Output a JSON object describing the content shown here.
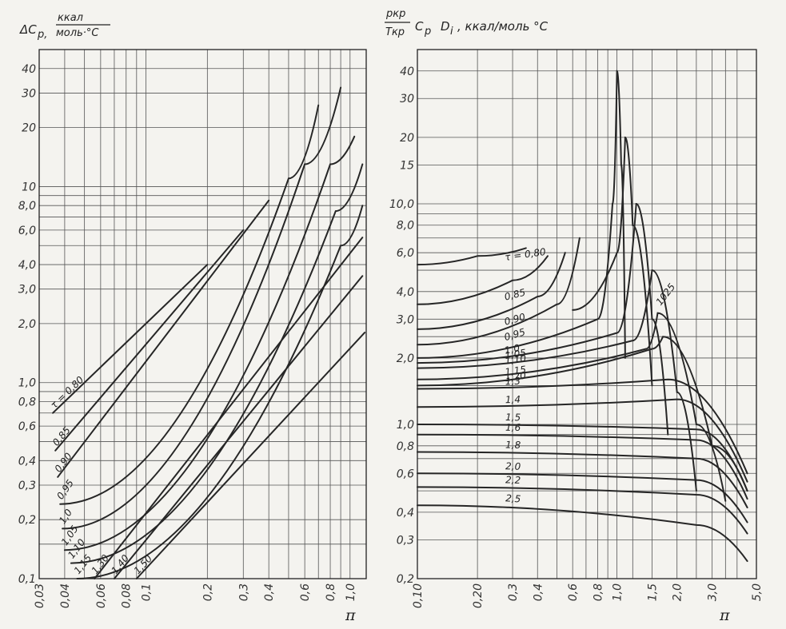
{
  "chart_data": [
    {
      "type": "line",
      "title": "ΔC_p, ккал/моль·°C",
      "title_parts": {
        "symbol": "ΔC",
        "sub": "p",
        "units_num": "ккал",
        "units_den": "моль·°C"
      },
      "xlabel": "π",
      "xscale": "log",
      "yscale": "log",
      "xlim": [
        0.03,
        1.2
      ],
      "ylim": [
        0.1,
        50
      ],
      "x_ticks": [
        "0,03",
        "0,04",
        "0,06",
        "0,08",
        "0,1",
        "0,2",
        "0,3",
        "0,4",
        "0,6",
        "0,8",
        "1,0"
      ],
      "y_ticks": [
        "0,1",
        "0,2",
        "0,3",
        "0,4",
        "0,6",
        "0,8",
        "1,0",
        "2,0",
        "3,0",
        "4,0",
        "6,0",
        "8,0",
        "10",
        "20",
        "30",
        "40"
      ],
      "series": [
        {
          "name": "τ = 0,80",
          "x": [
            0.035,
            0.2
          ],
          "y": [
            0.7,
            4.0
          ]
        },
        {
          "name": "0,85",
          "x": [
            0.036,
            0.3
          ],
          "y": [
            0.45,
            6.0
          ]
        },
        {
          "name": "0,90",
          "x": [
            0.037,
            0.4
          ],
          "y": [
            0.33,
            8.5
          ]
        },
        {
          "name": "0,95",
          "x": [
            0.038,
            0.5,
            0.7
          ],
          "y": [
            0.24,
            11,
            26
          ]
        },
        {
          "name": "1,0",
          "x": [
            0.039,
            0.6,
            0.9
          ],
          "y": [
            0.18,
            13,
            32
          ]
        },
        {
          "name": "1,05",
          "x": [
            0.04,
            0.8,
            1.05
          ],
          "y": [
            0.14,
            13,
            18
          ]
        },
        {
          "name": "1,10",
          "x": [
            0.043,
            0.85,
            1.15
          ],
          "y": [
            0.12,
            7.5,
            13
          ]
        },
        {
          "name": "1,15",
          "x": [
            0.046,
            0.9,
            1.15
          ],
          "y": [
            0.1,
            5.0,
            8.0
          ]
        },
        {
          "name": "1,30",
          "x": [
            0.056,
            1.15
          ],
          "y": [
            0.1,
            5.5
          ]
        },
        {
          "name": "1,40",
          "x": [
            0.07,
            1.15
          ],
          "y": [
            0.1,
            3.5
          ]
        },
        {
          "name": "1,50",
          "x": [
            0.09,
            1.18
          ],
          "y": [
            0.1,
            1.8
          ]
        }
      ]
    },
    {
      "type": "line",
      "title": "p_кр/T_кр · C_p D_i, ккал/моль °C",
      "title_parts": {
        "frac_num": "p",
        "frac_num_sub": "кр",
        "frac_den": "T",
        "frac_den_sub": "кр",
        "symbol1": "C",
        "sub1": "p",
        "symbol2": "D",
        "sub2": "i",
        "units": ", ккал/моль °C"
      },
      "xlabel": "π",
      "xscale": "log",
      "yscale": "log",
      "xlim": [
        0.1,
        5.0
      ],
      "ylim": [
        0.2,
        50
      ],
      "x_ticks": [
        "0,10",
        "0,20",
        "0,3",
        "0,4",
        "0,6",
        "0,8",
        "1,0",
        "1,5",
        "2,0",
        "3,0",
        "5,0"
      ],
      "y_ticks": [
        "0,2",
        "0,3",
        "0,4",
        "0,6",
        "0,8",
        "1,0",
        "2,0",
        "3,0",
        "4,0",
        "6,0",
        "8,0",
        "10,0",
        "15",
        "20",
        "30",
        "40"
      ],
      "series": [
        {
          "name": "τ = 0,80",
          "x": [
            0.1,
            0.2,
            0.35
          ],
          "y": [
            5.3,
            5.8,
            6.3
          ]
        },
        {
          "name": "0,85",
          "x": [
            0.1,
            0.3,
            0.45
          ],
          "y": [
            3.5,
            4.5,
            5.8
          ]
        },
        {
          "name": "0,90",
          "x": [
            0.1,
            0.4,
            0.55
          ],
          "y": [
            2.7,
            3.8,
            6.0
          ]
        },
        {
          "name": "0,95",
          "x": [
            0.1,
            0.5,
            0.65
          ],
          "y": [
            2.3,
            3.5,
            7.0
          ]
        },
        {
          "name": "1,0",
          "x": [
            0.1,
            0.8,
            0.95,
            1.0,
            1.05,
            1.1
          ],
          "y": [
            2.0,
            3.0,
            10,
            40,
            15,
            2.0
          ]
        },
        {
          "name": "1025",
          "x": [
            0.6,
            1.0,
            1.1,
            1.2,
            1.5
          ],
          "y": [
            3.3,
            6.0,
            20,
            8,
            1.5
          ]
        },
        {
          "name": "1,05",
          "x": [
            0.1,
            1.0,
            1.25,
            1.5,
            1.8
          ],
          "y": [
            1.9,
            2.6,
            10,
            3.0,
            0.9
          ]
        },
        {
          "name": "1,10",
          "x": [
            0.1,
            1.2,
            1.5,
            2.0,
            2.5
          ],
          "y": [
            1.8,
            2.4,
            5.0,
            1.4,
            0.5
          ]
        },
        {
          "name": "1,15",
          "x": [
            0.1,
            1.4,
            1.6,
            2.5,
            3.5
          ],
          "y": [
            1.6,
            2.2,
            3.2,
            1.0,
            0.45
          ]
        },
        {
          "name": "1,20",
          "x": [
            0.1,
            1.5,
            1.7,
            3.0,
            4.5
          ],
          "y": [
            1.5,
            2.2,
            2.5,
            0.8,
            0.5
          ]
        },
        {
          "name": "1,3",
          "x": [
            0.1,
            1.8,
            4.5
          ],
          "y": [
            1.45,
            1.6,
            0.6
          ]
        },
        {
          "name": "1,4",
          "x": [
            0.1,
            2.0,
            4.5
          ],
          "y": [
            1.2,
            1.3,
            0.55
          ]
        },
        {
          "name": "1,5",
          "x": [
            0.1,
            2.5,
            4.5
          ],
          "y": [
            1.0,
            0.95,
            0.5
          ]
        },
        {
          "name": "1,6",
          "x": [
            0.1,
            2.5,
            4.5
          ],
          "y": [
            0.9,
            0.85,
            0.46
          ]
        },
        {
          "name": "1,8",
          "x": [
            0.1,
            2.5,
            4.5
          ],
          "y": [
            0.75,
            0.7,
            0.42
          ]
        },
        {
          "name": "2,0",
          "x": [
            0.1,
            2.5,
            4.5
          ],
          "y": [
            0.6,
            0.56,
            0.36
          ]
        },
        {
          "name": "2,2",
          "x": [
            0.1,
            2.5,
            4.5
          ],
          "y": [
            0.52,
            0.48,
            0.32
          ]
        },
        {
          "name": "2,5",
          "x": [
            0.1,
            2.5,
            4.5
          ],
          "y": [
            0.43,
            0.35,
            0.24
          ]
        }
      ]
    }
  ]
}
